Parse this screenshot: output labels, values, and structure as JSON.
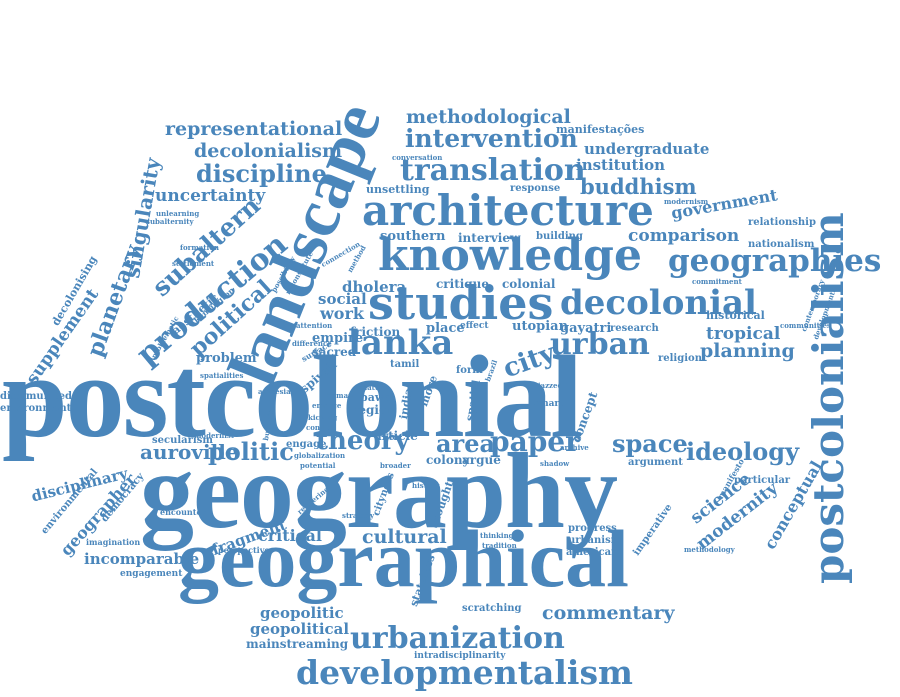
{
  "accent_color": "#4a86bb",
  "background_color": "#ffffff",
  "words": {
    "postcolonial": "postcolonial",
    "geography": "geography",
    "geographical": "geographical",
    "landscape": "landscape",
    "knowledge": "knowledge",
    "architecture": "architecture",
    "studies": "studies",
    "decolonial": "decolonial",
    "geographies": "geographies",
    "postcolonialism": "postcolonialism",
    "developmentalism": "developmentalism",
    "urbanization": "urbanization",
    "production": "production",
    "lanka": "lanka",
    "urban": "urban",
    "translation": "translation",
    "intervention": "intervention",
    "methodological": "methodological",
    "representational": "representational",
    "decolonialism": "decolonialism",
    "discipline": "discipline",
    "uncertainty": "uncertainty",
    "subaltern": "subaltern",
    "singularity": "singularity",
    "planetary": "planetary",
    "supplement": "supplement",
    "decolonising": "decolonising",
    "political": "political",
    "theory": "theory",
    "paper": "paper",
    "area": "area",
    "city": "city",
    "space": "space",
    "ideology": "ideology",
    "planning": "planning",
    "tropical": "tropical",
    "buddhism": "buddhism",
    "government": "government",
    "comparison": "comparison",
    "undergraduate": "undergraduate",
    "institution": "institution",
    "modernity": "modernity",
    "science": "science",
    "conceptual": "conceptual",
    "cultural": "cultural",
    "critical": "critical",
    "fragment": "fragment",
    "incomparable": "incomparable",
    "auroville": "auroville",
    "politic": "politic",
    "commentary": "commentary",
    "geopolitic": "geopolitic",
    "geopolitical": "geopolitical",
    "mainstreaming": "mainstreaming",
    "geographer": "geographer",
    "disciplinary": "disciplinary",
    "dissimulated": "dissimulated",
    "environment": "environment",
    "southern": "southern",
    "dholera": "dholera",
    "social": "social",
    "work": "work",
    "friction": "friction",
    "colonial": "colonial",
    "critique": "critique",
    "utopian": "utopian",
    "gayatri": "gayatri",
    "historical": "historical",
    "interview": "interview",
    "building": "building",
    "unsettling": "unsettling",
    "response": "response",
    "manifestacoes": "manifestações",
    "relationship": "relationship",
    "nationalism": "nationalism",
    "problem": "problem",
    "aesthetic": "aesthetic",
    "secularism": "secularism",
    "modernist": "modernist",
    "engage": "engage",
    "thought": "thought",
    "concept": "concept",
    "article": "article",
    "colony": "colony",
    "argue": "argue",
    "argument": "argument",
    "particular": "particular",
    "progress": "progress",
    "urbanism": "urbanism",
    "american": "american",
    "imperative": "imperative",
    "perspective": "perspective",
    "stateless": "stateless",
    "scratching": "scratching",
    "intradisciplinarity": "intradisciplinarity",
    "engagement": "engagement",
    "imagination": "imagination",
    "encounter": "encounter",
    "environmental": "environmental",
    "democracy": "democracy",
    "spivak": "spivak",
    "region": "region",
    "bawa": "bawa",
    "tamil": "tamil",
    "form": "form",
    "empire": "empire",
    "sacred": "sacred",
    "place": "place",
    "research": "research",
    "religion": "religion",
    "settlement": "settlement",
    "formation": "formation",
    "unlearning": "unlearning",
    "subalternity": "subalternity",
    "kensington": "kensington",
    "conversation": "conversation",
    "modernism": "modernism",
    "contemporary": "contemporary",
    "developmental": "developmental",
    "communities": "communities",
    "commitment": "commitment",
    "methodology": "methodology",
    "manifesto": "manifesto",
    "thinking": "thinking",
    "tradition": "tradition",
    "shadow": "shadow",
    "archive": "archive",
    "potential": "potential",
    "globalization": "globalization",
    "rendering": "rendering",
    "strategy": "strategy",
    "cityness": "cityness",
    "buddhist": "buddhist",
    "kicking": "kicking",
    "conflict": "conflict",
    "amnesia": "amnesia",
    "attention": "attention",
    "smart": "smart",
    "jazzed": "jazzed",
    "more": "more",
    "india": "india",
    "spatial": "spatial",
    "brazil": "brazil",
    "effect": "effect",
    "method": "method",
    "connection": "connection",
    "difference": "difference",
    "surface": "surface",
    "broader": "broader",
    "history": "history",
    "nature": "nature",
    "human": "human",
    "emerge": "emerge",
    "possibility": "possibility",
    "reconstitute": "reconstitute",
    "problematic": "problematic",
    "spatialities": "spatialities"
  }
}
